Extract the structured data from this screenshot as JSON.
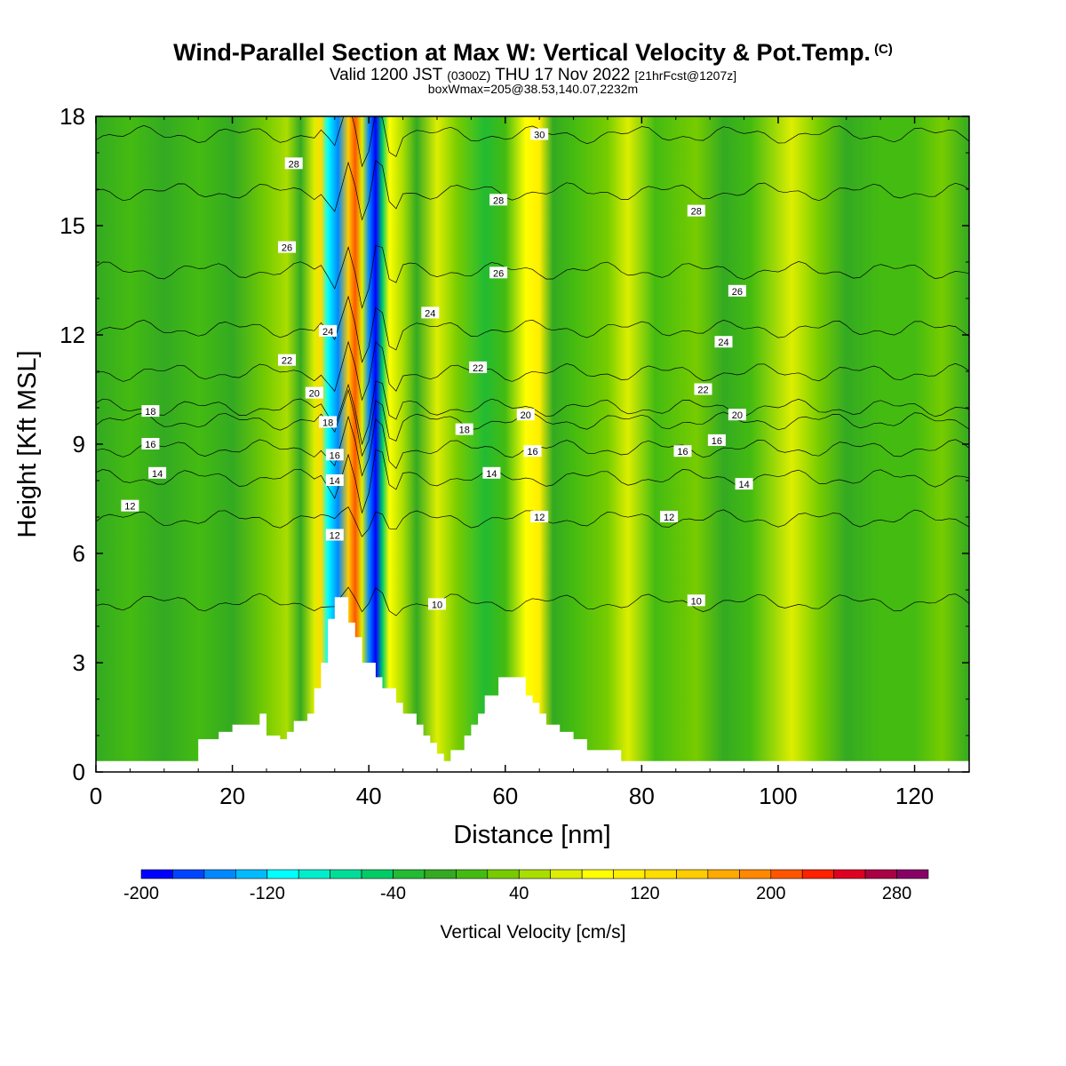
{
  "title": {
    "main": "Wind-Parallel Section at Max W: Vertical Velocity & Pot.Temp.",
    "copyright": "(C)",
    "valid_prefix": "Valid 1200 JST",
    "valid_utc": "(0300Z)",
    "valid_date": "THU 17 Nov 2022",
    "forecast": "[21hrFcst@1207z]",
    "boxinfo": "boxWmax=205@38.53,140.07,2232m"
  },
  "colorbar": {
    "title": "Vertical Velocity [cm/s]",
    "tick_labels": [
      "-200",
      "-120",
      "-40",
      "40",
      "120",
      "200",
      "280"
    ],
    "tick_values": [
      -200,
      -120,
      -40,
      40,
      120,
      200,
      280
    ],
    "levels": [
      -200,
      -180,
      -160,
      -140,
      -120,
      -100,
      -80,
      -60,
      -40,
      -20,
      0,
      20,
      40,
      60,
      80,
      100,
      120,
      140,
      160,
      180,
      200,
      220,
      240,
      260,
      280,
      300
    ],
    "colors": [
      "#0000ff",
      "#0044ff",
      "#0088ff",
      "#00bbff",
      "#00ffff",
      "#00eecc",
      "#00dd99",
      "#00cc66",
      "#22bb33",
      "#33aa22",
      "#44bb11",
      "#77cc00",
      "#aadd00",
      "#ddee00",
      "#ffff00",
      "#ffee00",
      "#ffdd00",
      "#ffcc00",
      "#ffaa00",
      "#ff8800",
      "#ff5500",
      "#ff2200",
      "#dd0022",
      "#aa0044",
      "#880066",
      "#660088"
    ]
  },
  "chart_data": {
    "type": "heatmap",
    "title": "Wind-Parallel Section at Max W: Vertical Velocity & Pot.Temp.",
    "xlabel": "Distance [nm]",
    "ylabel": "Height [Kft MSL]",
    "xlim": [
      0,
      128
    ],
    "ylim": [
      0,
      18
    ],
    "x_ticks": [
      0,
      20,
      40,
      60,
      80,
      100,
      120
    ],
    "y_ticks": [
      0,
      3,
      6,
      9,
      12,
      15,
      18
    ],
    "x_tick_labels": [
      "0",
      "20",
      "40",
      "60",
      "80",
      "100",
      "120"
    ],
    "y_tick_labels": [
      "0",
      "3",
      "6",
      "9",
      "12",
      "15",
      "18"
    ],
    "vertical_velocity_bands": [
      {
        "x": 0,
        "w": -10
      },
      {
        "x": 5,
        "w": 0
      },
      {
        "x": 10,
        "w": -10
      },
      {
        "x": 15,
        "w": 10
      },
      {
        "x": 20,
        "w": -5
      },
      {
        "x": 25,
        "w": 20
      },
      {
        "x": 28,
        "w": 40
      },
      {
        "x": 30,
        "w": -20
      },
      {
        "x": 32,
        "w": 60
      },
      {
        "x": 33,
        "w": 120
      },
      {
        "x": 34,
        "w": -120
      },
      {
        "x": 35.5,
        "w": -160
      },
      {
        "x": 37,
        "w": 150
      },
      {
        "x": 38,
        "w": 205
      },
      {
        "x": 39,
        "w": 60
      },
      {
        "x": 40,
        "w": -150
      },
      {
        "x": 41,
        "w": -190
      },
      {
        "x": 42,
        "w": -60
      },
      {
        "x": 43,
        "w": 80
      },
      {
        "x": 45,
        "w": 40
      },
      {
        "x": 47,
        "w": -10
      },
      {
        "x": 50,
        "w": 60
      },
      {
        "x": 53,
        "w": 20
      },
      {
        "x": 57,
        "w": -30
      },
      {
        "x": 60,
        "w": 0
      },
      {
        "x": 63,
        "w": 80
      },
      {
        "x": 65,
        "w": 100
      },
      {
        "x": 67,
        "w": -20
      },
      {
        "x": 70,
        "w": 10
      },
      {
        "x": 75,
        "w": 20
      },
      {
        "x": 78,
        "w": 70
      },
      {
        "x": 82,
        "w": 10
      },
      {
        "x": 88,
        "w": 20
      },
      {
        "x": 92,
        "w": -10
      },
      {
        "x": 96,
        "w": 10
      },
      {
        "x": 102,
        "w": 60
      },
      {
        "x": 106,
        "w": 20
      },
      {
        "x": 110,
        "w": -10
      },
      {
        "x": 115,
        "w": 10
      },
      {
        "x": 120,
        "w": 0
      },
      {
        "x": 124,
        "w": 20
      },
      {
        "x": 128,
        "w": -10
      }
    ],
    "terrain": [
      [
        0,
        0.3
      ],
      [
        15,
        0.3
      ],
      [
        15,
        0.9
      ],
      [
        18,
        0.9
      ],
      [
        18,
        1.1
      ],
      [
        20,
        1.1
      ],
      [
        20,
        1.3
      ],
      [
        24,
        1.3
      ],
      [
        24,
        1.6
      ],
      [
        25,
        1.6
      ],
      [
        25,
        1.0
      ],
      [
        27,
        1.0
      ],
      [
        27,
        0.9
      ],
      [
        28,
        0.9
      ],
      [
        28,
        1.1
      ],
      [
        29,
        1.1
      ],
      [
        29,
        1.4
      ],
      [
        31,
        1.4
      ],
      [
        31,
        1.6
      ],
      [
        32,
        1.6
      ],
      [
        32,
        2.3
      ],
      [
        33,
        2.3
      ],
      [
        33,
        3.0
      ],
      [
        34,
        3.0
      ],
      [
        34,
        4.2
      ],
      [
        35,
        4.2
      ],
      [
        35,
        4.8
      ],
      [
        37,
        4.8
      ],
      [
        37,
        4.1
      ],
      [
        38,
        4.1
      ],
      [
        38,
        3.7
      ],
      [
        39,
        3.7
      ],
      [
        39,
        3.0
      ],
      [
        41,
        3.0
      ],
      [
        41,
        2.6
      ],
      [
        42,
        2.6
      ],
      [
        42,
        2.3
      ],
      [
        44,
        2.3
      ],
      [
        44,
        1.9
      ],
      [
        45,
        1.9
      ],
      [
        45,
        1.6
      ],
      [
        47,
        1.6
      ],
      [
        47,
        1.3
      ],
      [
        48,
        1.3
      ],
      [
        48,
        1.0
      ],
      [
        49,
        1.0
      ],
      [
        49,
        0.8
      ],
      [
        50,
        0.8
      ],
      [
        50,
        0.5
      ],
      [
        51,
        0.5
      ],
      [
        51,
        0.3
      ],
      [
        52,
        0.3
      ],
      [
        52,
        0.6
      ],
      [
        54,
        0.6
      ],
      [
        54,
        1.0
      ],
      [
        55,
        1.0
      ],
      [
        55,
        1.3
      ],
      [
        56,
        1.3
      ],
      [
        56,
        1.6
      ],
      [
        57,
        1.6
      ],
      [
        57,
        2.1
      ],
      [
        59,
        2.1
      ],
      [
        59,
        2.6
      ],
      [
        63,
        2.6
      ],
      [
        63,
        2.1
      ],
      [
        64,
        2.1
      ],
      [
        64,
        1.9
      ],
      [
        65,
        1.9
      ],
      [
        65,
        1.6
      ],
      [
        66,
        1.6
      ],
      [
        66,
        1.3
      ],
      [
        68,
        1.3
      ],
      [
        68,
        1.1
      ],
      [
        70,
        1.1
      ],
      [
        70,
        0.9
      ],
      [
        72,
        0.9
      ],
      [
        72,
        0.6
      ],
      [
        77,
        0.6
      ],
      [
        77,
        0.3
      ],
      [
        128,
        0.3
      ]
    ],
    "potential_temperature_contours": [
      {
        "theta": 10,
        "label_at": [
          [
            50,
            4.6
          ],
          [
            88,
            4.7
          ]
        ]
      },
      {
        "theta": 12,
        "label_at": [
          [
            5,
            7.3
          ],
          [
            35,
            6.5
          ],
          [
            65,
            7.0
          ],
          [
            84,
            7.0
          ]
        ]
      },
      {
        "theta": 14,
        "label_at": [
          [
            9,
            8.2
          ],
          [
            35,
            8.0
          ],
          [
            58,
            8.2
          ],
          [
            95,
            7.9
          ]
        ]
      },
      {
        "theta": 16,
        "label_at": [
          [
            8,
            9.0
          ],
          [
            35,
            8.7
          ],
          [
            64,
            8.8
          ],
          [
            86,
            8.8
          ],
          [
            91,
            9.1
          ]
        ]
      },
      {
        "theta": 18,
        "label_at": [
          [
            8,
            9.9
          ],
          [
            34,
            9.6
          ],
          [
            54,
            9.4
          ]
        ]
      },
      {
        "theta": 20,
        "label_at": [
          [
            32,
            10.4
          ],
          [
            63,
            9.8
          ],
          [
            94,
            9.8
          ]
        ]
      },
      {
        "theta": 22,
        "label_at": [
          [
            28,
            11.3
          ],
          [
            56,
            11.1
          ],
          [
            89,
            10.5
          ]
        ]
      },
      {
        "theta": 24,
        "label_at": [
          [
            34,
            12.1
          ],
          [
            49,
            12.6
          ],
          [
            92,
            11.8
          ]
        ]
      },
      {
        "theta": 26,
        "label_at": [
          [
            28,
            14.4
          ],
          [
            59,
            13.7
          ],
          [
            94,
            13.2
          ]
        ]
      },
      {
        "theta": 28,
        "label_at": [
          [
            29,
            16.7
          ],
          [
            59,
            15.7
          ],
          [
            88,
            15.4
          ]
        ]
      },
      {
        "theta": 30,
        "label_at": [
          [
            65,
            17.5
          ]
        ]
      }
    ]
  }
}
